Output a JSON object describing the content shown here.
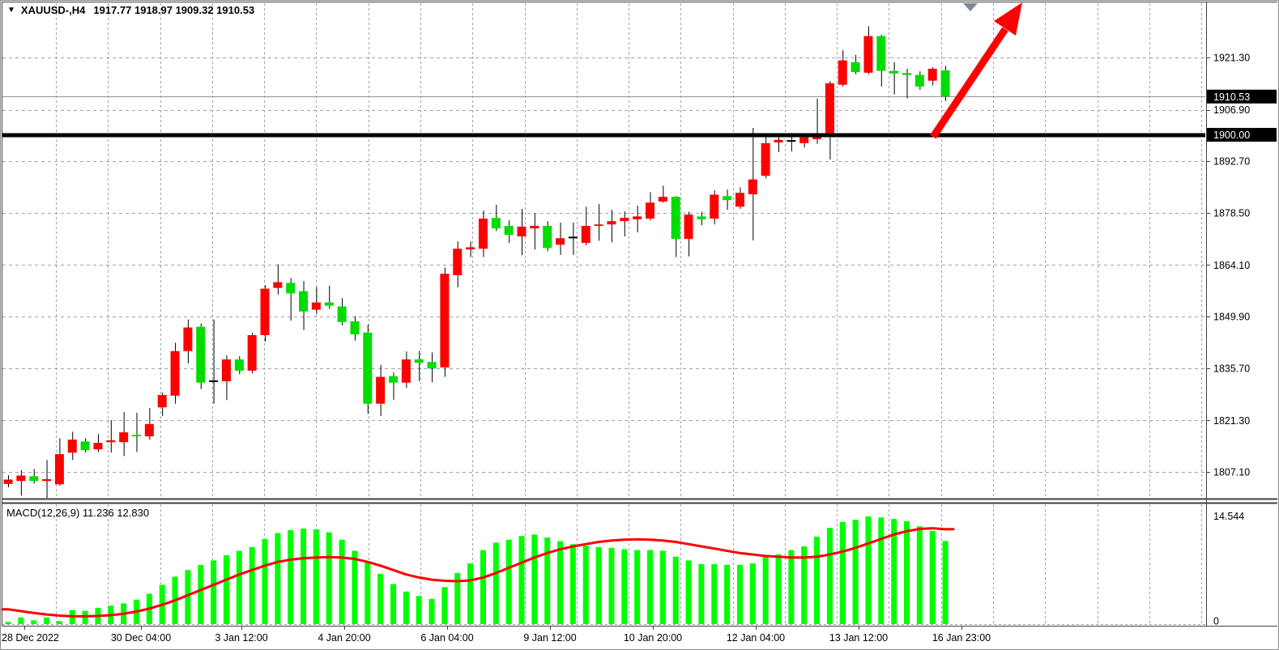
{
  "header": {
    "dropdown_glyph": "▼",
    "symbol_period": "XAUUSD-,H4",
    "ohlc_text": "1917.77 1918.97 1909.32 1910.53"
  },
  "colors": {
    "background": "#ffffff",
    "grid": "#98a4b4",
    "bull_candle": "#ff0000",
    "bear_candle": "#00dc00",
    "wick": "#000000",
    "histogram": "#00ff00",
    "signal_line": "#ff0000",
    "level_line_1900": "#000000",
    "bid_line": "#909090",
    "axis_text": "#000000",
    "boxed_label_bg": "#000000",
    "boxed_label_text": "#ffffff",
    "trend_arrow": "#ff0000",
    "shift_marker": "#7e8896"
  },
  "chart_data": [
    {
      "type": "candlestick",
      "title": "XAUUSD-,H4",
      "symbol": "XAUUSD-",
      "timeframe": "H4",
      "last_ohlc": {
        "open": 1917.77,
        "high": 1918.97,
        "low": 1909.32,
        "close": 1910.53
      },
      "x_time_labels": [
        "28 Dec 2022",
        "30 Dec 04:00",
        "3 Jan 12:00",
        "4 Jan 20:00",
        "6 Jan 04:00",
        "9 Jan 12:00",
        "10 Jan 20:00",
        "12 Jan 04:00",
        "13 Jan 12:00",
        "16 Jan 23:00"
      ],
      "y_axis_ticks": [
        "1921.30",
        "1906.90",
        "1892.70",
        "1878.50",
        "1864.10",
        "1849.90",
        "1835.70",
        "1821.30",
        "1807.10"
      ],
      "y_axis_tick_values": [
        1921.3,
        1906.9,
        1892.7,
        1878.5,
        1864.1,
        1849.9,
        1835.7,
        1821.3,
        1807.1
      ],
      "ylim": [
        1800.5,
        1936.5
      ],
      "grid": true,
      "candles_ohlc": [
        [
          1803.8,
          1806.2,
          1802.9,
          1805.0
        ],
        [
          1804.6,
          1807.6,
          1800.6,
          1806.1
        ],
        [
          1805.9,
          1807.9,
          1803.9,
          1804.6
        ],
        [
          1804.6,
          1810.4,
          1799.9,
          1805.1
        ],
        [
          1803.7,
          1816.4,
          1803.3,
          1812.0
        ],
        [
          1812.4,
          1818.2,
          1810.4,
          1816.0
        ],
        [
          1815.5,
          1816.4,
          1812.4,
          1813.1
        ],
        [
          1813.3,
          1817.5,
          1812.6,
          1815.1
        ],
        [
          1815.3,
          1821.4,
          1812.4,
          1815.8
        ],
        [
          1815.3,
          1823.6,
          1811.5,
          1818.0
        ],
        [
          1817.3,
          1823.4,
          1812.6,
          1816.9
        ],
        [
          1816.9,
          1824.7,
          1816.0,
          1820.3
        ],
        [
          1824.9,
          1829.0,
          1822.5,
          1828.3
        ],
        [
          1828.1,
          1842.7,
          1825.9,
          1840.4
        ],
        [
          1840.4,
          1849.1,
          1837.0,
          1846.9
        ],
        [
          1847.1,
          1848.0,
          1829.9,
          1831.7
        ],
        [
          1832.1,
          1849.1,
          1825.9,
          1832.1
        ],
        [
          1832.1,
          1839.2,
          1826.9,
          1838.1
        ],
        [
          1838.1,
          1839.0,
          1834.0,
          1835.0
        ],
        [
          1835.0,
          1845.5,
          1834.2,
          1844.8
        ],
        [
          1844.8,
          1858.5,
          1843.0,
          1857.6
        ],
        [
          1857.8,
          1864.3,
          1856.0,
          1859.4
        ],
        [
          1859.2,
          1860.5,
          1848.8,
          1856.3
        ],
        [
          1856.9,
          1859.7,
          1846.2,
          1851.3
        ],
        [
          1851.8,
          1858.0,
          1850.7,
          1853.8
        ],
        [
          1853.8,
          1858.4,
          1852.0,
          1852.9
        ],
        [
          1852.7,
          1855.0,
          1847.5,
          1848.4
        ],
        [
          1848.6,
          1850.0,
          1843.3,
          1845.0
        ],
        [
          1845.5,
          1847.7,
          1823.2,
          1825.9
        ],
        [
          1825.9,
          1836.6,
          1822.5,
          1833.3
        ],
        [
          1833.5,
          1834.5,
          1827.0,
          1831.7
        ],
        [
          1831.7,
          1840.3,
          1830.3,
          1838.1
        ],
        [
          1838.1,
          1840.4,
          1832.1,
          1837.2
        ],
        [
          1837.4,
          1840.0,
          1831.8,
          1835.6
        ],
        [
          1835.9,
          1863.4,
          1833.3,
          1861.7
        ],
        [
          1861.3,
          1870.6,
          1858.0,
          1868.6
        ],
        [
          1868.4,
          1870.6,
          1866.3,
          1869.0
        ],
        [
          1868.6,
          1879.1,
          1866.3,
          1876.9
        ],
        [
          1877.1,
          1880.7,
          1873.5,
          1874.2
        ],
        [
          1874.9,
          1876.4,
          1870.2,
          1872.4
        ],
        [
          1872.0,
          1879.6,
          1866.8,
          1874.7
        ],
        [
          1874.2,
          1878.4,
          1868.4,
          1874.9
        ],
        [
          1874.9,
          1876.2,
          1867.9,
          1868.8
        ],
        [
          1869.7,
          1875.8,
          1866.9,
          1871.5
        ],
        [
          1871.7,
          1875.8,
          1866.9,
          1871.7
        ],
        [
          1870.2,
          1880.2,
          1869.5,
          1874.9
        ],
        [
          1874.9,
          1880.9,
          1870.8,
          1875.3
        ],
        [
          1875.3,
          1879.3,
          1870.4,
          1876.2
        ],
        [
          1876.2,
          1878.9,
          1872.0,
          1877.1
        ],
        [
          1876.7,
          1880.5,
          1873.1,
          1877.5
        ],
        [
          1876.9,
          1884.2,
          1876.4,
          1881.3
        ],
        [
          1881.6,
          1886.0,
          1881.3,
          1882.9
        ],
        [
          1882.9,
          1883.1,
          1866.3,
          1871.3
        ],
        [
          1871.3,
          1878.8,
          1866.5,
          1878.0
        ],
        [
          1877.5,
          1878.8,
          1875.1,
          1876.7
        ],
        [
          1876.9,
          1884.7,
          1875.3,
          1883.5
        ],
        [
          1883.1,
          1884.9,
          1879.3,
          1882.0
        ],
        [
          1880.2,
          1885.5,
          1879.6,
          1884.0
        ],
        [
          1883.6,
          1901.9,
          1870.9,
          1887.7
        ],
        [
          1888.7,
          1899.9,
          1888.0,
          1897.7
        ],
        [
          1897.9,
          1900.3,
          1895.2,
          1898.6
        ],
        [
          1898.3,
          1900.5,
          1895.4,
          1898.3
        ],
        [
          1897.7,
          1900.2,
          1896.5,
          1899.7
        ],
        [
          1898.8,
          1910.0,
          1897.5,
          1899.8
        ],
        [
          1900.1,
          1914.8,
          1893.2,
          1914.2
        ],
        [
          1913.8,
          1923.3,
          1913.3,
          1920.5
        ],
        [
          1920.0,
          1922.0,
          1916.7,
          1917.3
        ],
        [
          1917.1,
          1929.9,
          1916.7,
          1927.2
        ],
        [
          1927.2,
          1927.6,
          1913.3,
          1917.6
        ],
        [
          1917.6,
          1920.0,
          1911.1,
          1916.9
        ],
        [
          1917.0,
          1918.2,
          1910.0,
          1916.5
        ],
        [
          1916.5,
          1917.5,
          1912.4,
          1913.3
        ],
        [
          1914.9,
          1918.6,
          1913.6,
          1918.2
        ],
        [
          1917.77,
          1918.97,
          1909.32,
          1910.53
        ]
      ],
      "annotations": {
        "horizontal_line": {
          "price": 1900.0,
          "label": "1900.00"
        },
        "bid_price_line": {
          "price": 1910.53,
          "label": "1910.53"
        },
        "trend_arrow": {
          "shape": "arrow-up-right",
          "color": "#ff0000"
        },
        "chart_shift_marker": {
          "shape": "triangle-down",
          "color": "#7e8896"
        }
      }
    },
    {
      "type": "macd",
      "label": "MACD(12,26,9) 11.236 12.830",
      "name": "MACD",
      "params": [
        12,
        26,
        9
      ],
      "current_macd": 11.236,
      "current_signal": 12.83,
      "y_axis_ticks": [
        "14.544",
        "0"
      ],
      "y_axis_tick_values": [
        14.544,
        0
      ],
      "ylim": [
        0,
        16.3
      ],
      "histogram": [
        0.3,
        0.9,
        0.5,
        0.9,
        0.4,
        1.9,
        1.8,
        2.2,
        2.5,
        2.8,
        3.3,
        4.1,
        5.3,
        6.4,
        7.3,
        8.0,
        8.6,
        9.3,
        9.9,
        10.4,
        11.5,
        12.3,
        12.7,
        12.9,
        12.8,
        12.4,
        11.4,
        9.9,
        8.4,
        6.8,
        5.4,
        4.4,
        3.8,
        3.4,
        5.0,
        6.9,
        8.2,
        10.0,
        11.0,
        11.4,
        11.9,
        12.1,
        11.7,
        11.2,
        10.8,
        10.6,
        10.4,
        10.3,
        10.1,
        10.0,
        10.0,
        9.9,
        9.1,
        8.6,
        8.1,
        8.1,
        8.0,
        8.0,
        8.2,
        9.1,
        9.4,
        10.0,
        10.5,
        11.8,
        13.0,
        13.8,
        14.1,
        14.544,
        14.4,
        14.2,
        13.9,
        13.2,
        12.6,
        11.236
      ],
      "signal": [
        2.0,
        1.75,
        1.5,
        1.3,
        1.15,
        1.05,
        1.05,
        1.1,
        1.2,
        1.4,
        1.7,
        2.1,
        2.6,
        3.2,
        3.9,
        4.6,
        5.3,
        6.0,
        6.7,
        7.3,
        7.9,
        8.4,
        8.7,
        8.9,
        9.0,
        9.05,
        9.0,
        8.8,
        8.4,
        7.9,
        7.3,
        6.7,
        6.3,
        6.0,
        5.85,
        5.8,
        5.9,
        6.3,
        6.9,
        7.6,
        8.3,
        9.0,
        9.6,
        10.1,
        10.5,
        10.8,
        11.1,
        11.3,
        11.4,
        11.45,
        11.4,
        11.3,
        11.1,
        10.8,
        10.5,
        10.2,
        9.9,
        9.6,
        9.4,
        9.2,
        9.1,
        9.0,
        9.0,
        9.1,
        9.4,
        9.8,
        10.3,
        10.9,
        11.5,
        12.1,
        12.55,
        12.85,
        12.95,
        12.83
      ]
    }
  ]
}
